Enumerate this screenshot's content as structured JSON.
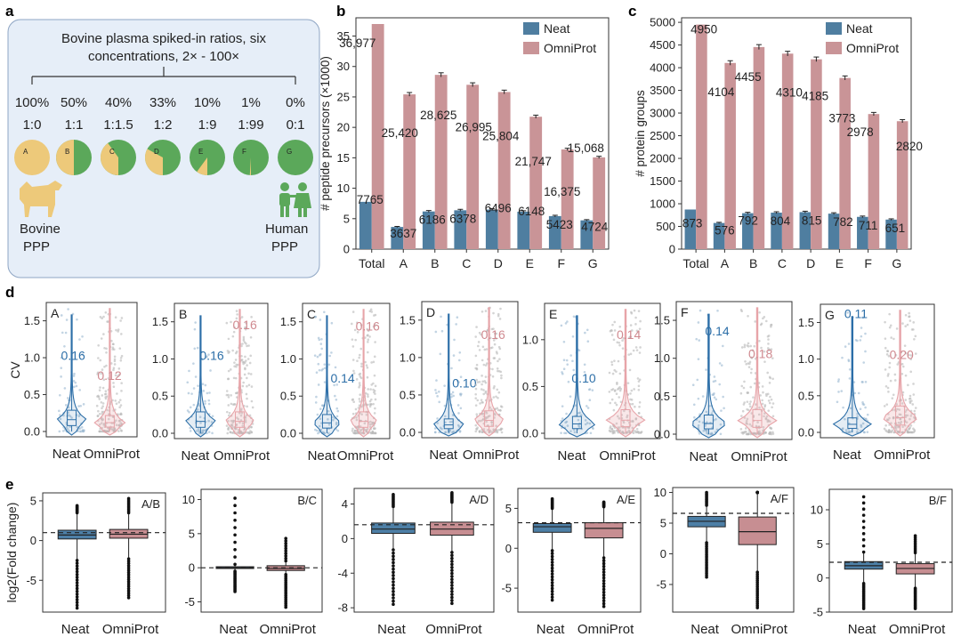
{
  "panel_letters": [
    "a",
    "b",
    "c",
    "d",
    "e"
  ],
  "panel_a": {
    "title_line1": "Bovine plasma spiked-in ratios, six",
    "title_line2": "concentrations, 2× - 100×",
    "percents": [
      "100%",
      "50%",
      "40%",
      "33%",
      "10%",
      "1%",
      "0%"
    ],
    "ratios": [
      "1:0",
      "1:1",
      "1:1.5",
      "1:2",
      "1:9",
      "1:99",
      "0:1"
    ],
    "pie_labels": [
      "A",
      "B",
      "C",
      "D",
      "E",
      "F",
      "G"
    ],
    "bovine_fraction": [
      1.0,
      0.5,
      0.4,
      0.33,
      0.1,
      0.01,
      0.0
    ],
    "bovine_label_1": "Bovine",
    "bovine_label_2": "PPP",
    "human_label_1": "Human",
    "human_label_2": "PPP",
    "colors": {
      "bovine": "#EDC97A",
      "human": "#5BA85A",
      "box_bg": "#E6EEF8",
      "box_border": "#8FA6C4"
    }
  },
  "colors": {
    "neat": "#4F7EA0",
    "omniprot": "#C99497",
    "neat_violin": "#2D6FA8",
    "omni_violin": "#E7A4A9",
    "neat_box": "#4D7FA6",
    "omni_box": "#C78E92"
  },
  "chart_data": [
    {
      "panel": "b",
      "type": "bar",
      "categories": [
        "Total",
        "A",
        "B",
        "C",
        "D",
        "E",
        "F",
        "G"
      ],
      "ylabel": "# peptide precursors  (×1000)",
      "ylim": [
        0,
        38
      ],
      "yticks": [
        0,
        5,
        10,
        15,
        20,
        25,
        30,
        35
      ],
      "legend_position": "top-right",
      "series": [
        {
          "name": "Neat",
          "values": [
            7.765,
            3.637,
            6.186,
            6.378,
            6.496,
            6.148,
            5.423,
            4.724
          ],
          "labels": [
            "7765",
            "3637",
            "6186",
            "6378",
            "6496",
            "6148",
            "5423",
            "4724"
          ]
        },
        {
          "name": "OmniProt",
          "values": [
            36.977,
            25.42,
            28.625,
            26.995,
            25.804,
            21.747,
            16.375,
            15.068
          ],
          "labels": [
            "36,977",
            "25,420",
            "28,625",
            "26,995",
            "25,804",
            "21,747",
            "16,375",
            "15,068"
          ]
        }
      ]
    },
    {
      "panel": "c",
      "type": "bar",
      "categories": [
        "Total",
        "A",
        "B",
        "C",
        "D",
        "E",
        "F",
        "G"
      ],
      "ylabel": "# protein groups",
      "ylim": [
        0,
        5100
      ],
      "yticks": [
        0,
        500,
        1000,
        1500,
        2000,
        2500,
        3000,
        3500,
        4000,
        4500,
        5000
      ],
      "legend_position": "top-right",
      "series": [
        {
          "name": "Neat",
          "values": [
            873,
            576,
            792,
            804,
            815,
            782,
            711,
            651
          ],
          "labels": [
            "873",
            "576",
            "792",
            "804",
            "815",
            "782",
            "711",
            "651"
          ]
        },
        {
          "name": "OmniProt",
          "values": [
            4950,
            4104,
            4455,
            4310,
            4185,
            3773,
            2978,
            2820
          ],
          "labels": [
            "4950",
            "4104",
            "4455",
            "4310",
            "4185",
            "3773",
            "2978",
            "2820"
          ]
        }
      ]
    },
    {
      "panel": "d",
      "type": "violin",
      "ylabel": "CV",
      "x_labels": [
        "Neat",
        "OmniProt"
      ],
      "subplots": [
        {
          "label": "A",
          "neat_median_label": "0.16",
          "omni_median_label": "0.12",
          "ylim": [
            0,
            1.7
          ],
          "yticks": [
            0.0,
            0.5,
            1.0,
            1.5
          ]
        },
        {
          "label": "B",
          "neat_median_label": "0.16",
          "omni_median_label": "0.16",
          "ylim": [
            0,
            1.7
          ],
          "yticks": [
            0.0,
            0.5,
            1.0,
            1.5
          ]
        },
        {
          "label": "C",
          "neat_median_label": "0.14",
          "omni_median_label": "0.16",
          "ylim": [
            0,
            1.7
          ],
          "yticks": [
            0.0,
            0.5,
            1.0,
            1.5
          ]
        },
        {
          "label": "D",
          "neat_median_label": "0.10",
          "omni_median_label": "0.16",
          "ylim": [
            0,
            1.7
          ],
          "yticks": [
            0.0,
            0.5,
            1.0,
            1.5
          ]
        },
        {
          "label": "E",
          "neat_median_label": "0.10",
          "omni_median_label": "0.14",
          "ylim": [
            0,
            1.35
          ],
          "yticks": [
            0.0,
            0.5,
            1.0
          ]
        },
        {
          "label": "F",
          "neat_median_label": "0.14",
          "omni_median_label": "0.18",
          "ylim": [
            0,
            1.7
          ],
          "yticks": [
            0.0,
            0.5,
            1.0,
            1.5
          ]
        },
        {
          "label": "G",
          "neat_median_label": "0.11",
          "omni_median_label": "0.20",
          "ylim": [
            0,
            1.7
          ],
          "yticks": [
            0.0,
            0.5,
            1.0,
            1.5
          ]
        }
      ]
    },
    {
      "panel": "e",
      "type": "box",
      "ylabel": "log2(Fold change)",
      "x_labels": [
        "Neat",
        "OmniProt"
      ],
      "subplots": [
        {
          "label": "A/B",
          "ylim": [
            -9,
            6
          ],
          "yticks": [
            -5,
            0,
            5
          ],
          "dashed": 1.0,
          "neat": {
            "q1": 0.2,
            "med": 0.7,
            "q3": 1.3,
            "wlo": -2.5,
            "whi": 3.5,
            "olo": -8.5,
            "ohi": 4.4
          },
          "omni": {
            "q1": 0.3,
            "med": 0.8,
            "q3": 1.4,
            "wlo": -2.3,
            "whi": 3.5,
            "olo": -7.2,
            "ohi": 5.3
          }
        },
        {
          "label": "B/C",
          "ylim": [
            -6.5,
            11.5
          ],
          "yticks": [
            -5,
            0,
            5,
            10
          ],
          "dashed": 0.0,
          "neat": {
            "q1": -0.1,
            "med": 0.0,
            "q3": 0.15,
            "wlo": -0.5,
            "whi": 0.5,
            "olo": -3.5,
            "ohi": 10.2
          },
          "omni": {
            "q1": -0.4,
            "med": -0.1,
            "q3": 0.3,
            "wlo": -1.0,
            "whi": 1.0,
            "olo": -5.8,
            "ohi": 4.3
          }
        },
        {
          "label": "A/D",
          "ylim": [
            -8.5,
            5.8
          ],
          "yticks": [
            -8,
            -4,
            0,
            4
          ],
          "dashed": 1.6,
          "neat": {
            "q1": 0.6,
            "med": 1.1,
            "q3": 1.8,
            "wlo": -1.3,
            "whi": 3.7,
            "olo": -7.6,
            "ohi": 5.1
          },
          "omni": {
            "q1": 0.4,
            "med": 1.1,
            "q3": 1.9,
            "wlo": -1.6,
            "whi": 4.2,
            "olo": -7.5,
            "ohi": 5.3
          }
        },
        {
          "label": "A/E",
          "ylim": [
            -8,
            7.5
          ],
          "yticks": [
            -5,
            0,
            5
          ],
          "dashed": 3.2,
          "neat": {
            "q1": 2.0,
            "med": 2.7,
            "q3": 3.1,
            "wlo": -0.3,
            "whi": 5.0,
            "olo": -6.5,
            "ohi": 6.2
          },
          "omni": {
            "q1": 1.3,
            "med": 2.5,
            "q3": 3.2,
            "wlo": -1.2,
            "whi": 5.2,
            "olo": -7.3,
            "ohi": 5.8
          }
        },
        {
          "label": "A/F",
          "ylim": [
            -9.5,
            10.8
          ],
          "yticks": [
            -5,
            0,
            5,
            10
          ],
          "dashed": 6.6,
          "neat": {
            "q1": 4.4,
            "med": 5.3,
            "q3": 6.1,
            "wlo": 1.8,
            "whi": 7.9,
            "olo": -3.8,
            "ohi": 10.0
          },
          "omni": {
            "q1": 1.5,
            "med": 3.6,
            "q3": 6.0,
            "wlo": -3.0,
            "whi": 10.0,
            "olo": -8.8,
            "ohi": 10.0
          }
        },
        {
          "label": "B/F",
          "ylim": [
            -5,
            13
          ],
          "yticks": [
            -5,
            0,
            5,
            10
          ],
          "dashed": 2.3,
          "neat": {
            "q1": 1.3,
            "med": 1.8,
            "q3": 2.4,
            "wlo": -0.8,
            "whi": 3.8,
            "olo": -4.5,
            "ohi": 11.9
          },
          "omni": {
            "q1": 0.6,
            "med": 1.4,
            "q3": 2.1,
            "wlo": -1.5,
            "whi": 3.7,
            "olo": -4.5,
            "ohi": 6.2
          }
        }
      ]
    }
  ]
}
